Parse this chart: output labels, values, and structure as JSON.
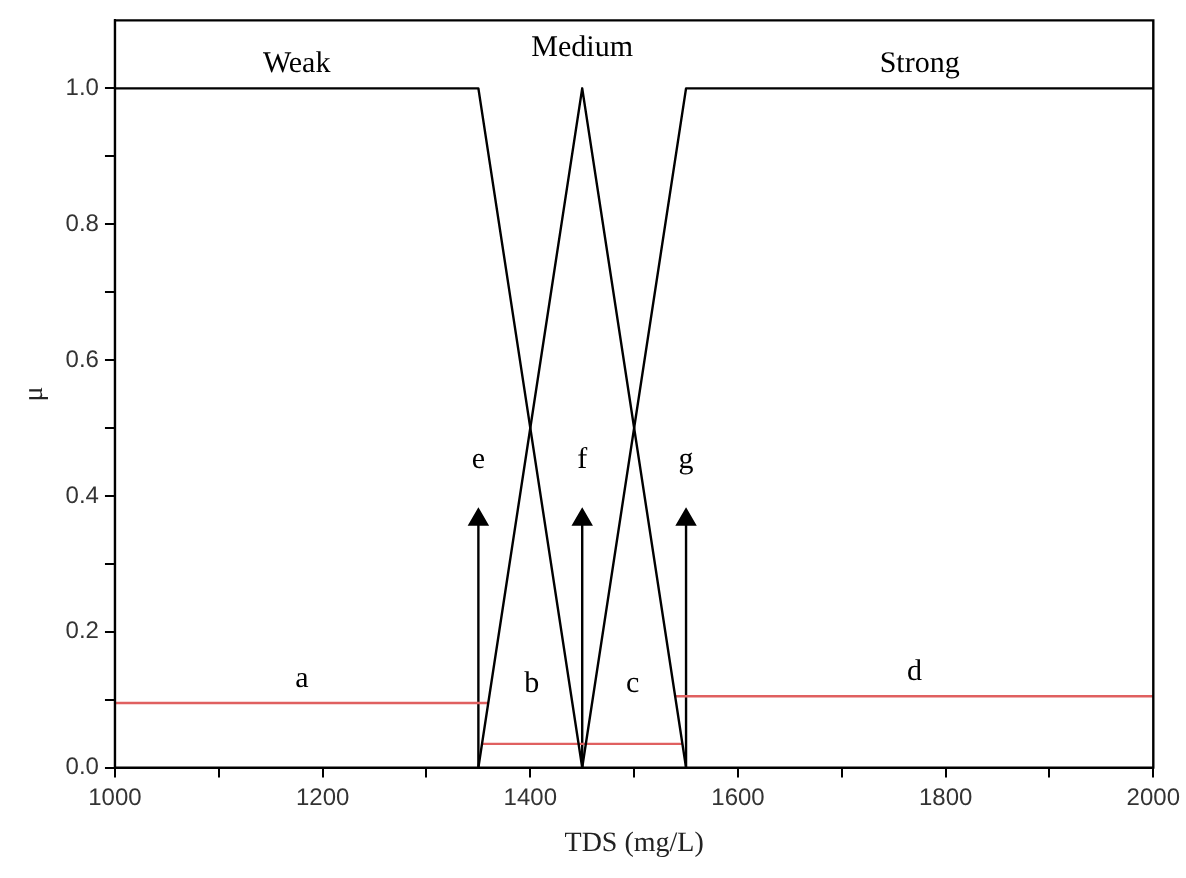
{
  "chart_data": {
    "type": "line",
    "xlabel": "TDS (mg/L)",
    "ylabel": "μ",
    "xlim": [
      1000,
      2000
    ],
    "ylim": [
      0,
      1.1
    ],
    "xticks": [
      1000,
      {
        "value": 1100,
        "label": null
      },
      1200,
      {
        "value": 1300,
        "label": null
      },
      1400,
      {
        "value": 1500,
        "label": null
      },
      1600,
      {
        "value": 1700,
        "label": null
      },
      1800,
      {
        "value": 1900,
        "label": null
      },
      2000
    ],
    "yticks": [
      {
        "value": 0,
        "label": "0.0"
      },
      {
        "value": 0.1,
        "label": null
      },
      0.2,
      {
        "value": 0.3,
        "label": null
      },
      0.4,
      {
        "value": 0.5,
        "label": null
      },
      0.6,
      {
        "value": 0.7,
        "label": null
      },
      0.8,
      {
        "value": 0.9,
        "label": null
      },
      {
        "value": 1,
        "label": "1.0"
      }
    ],
    "grid": false,
    "legend": false,
    "marker": "none",
    "line_style": "solid",
    "series": [
      {
        "name": "Weak",
        "color": "#000000",
        "x": [
          1000,
          1350,
          1450
        ],
        "values": [
          1,
          1,
          0
        ]
      },
      {
        "name": "Medium",
        "color": "#000000",
        "x": [
          1350,
          1450,
          1550
        ],
        "values": [
          0,
          1,
          0
        ]
      },
      {
        "name": "Strong",
        "color": "#000000",
        "x": [
          1450,
          1550,
          2000
        ],
        "values": [
          0,
          1,
          1
        ]
      },
      {
        "name": "a",
        "color": "#e06060",
        "x": [
          1000,
          1360
        ],
        "values": [
          0.095,
          0.095
        ]
      },
      {
        "color": "#e06060",
        "x": [
          1353,
          1547
        ],
        "values": [
          0.035,
          0.035
        ]
      },
      {
        "name": "d",
        "color": "#e06060",
        "x": [
          1540,
          2000
        ],
        "values": [
          0.105,
          0.105
        ]
      },
      {
        "name": "e",
        "color": "#000000",
        "x": [
          1350,
          1350
        ],
        "values": [
          0,
          0.365
        ],
        "marker": "triangle"
      },
      {
        "name": "f",
        "color": "#000000",
        "x": [
          1450,
          1450
        ],
        "values": [
          0,
          0.365
        ],
        "marker": "triangle"
      },
      {
        "name": "g",
        "color": "#000000",
        "x": [
          1550,
          1550
        ],
        "values": [
          0,
          0.365
        ],
        "marker": "triangle"
      }
    ],
    "annotations": [
      "b",
      "c"
    ]
  }
}
